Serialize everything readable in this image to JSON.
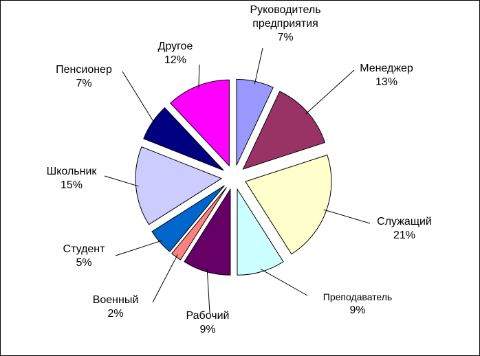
{
  "chart_data": {
    "type": "pie",
    "categories": [
      "Руководитель предприятия",
      "Менеджер",
      "Служащий",
      "Преподаватель",
      "Рабочий",
      "Военный",
      "Студент",
      "Школьник",
      "Пенсионер",
      "Другое"
    ],
    "values": [
      7,
      13,
      21,
      9,
      9,
      2,
      5,
      15,
      7,
      12
    ],
    "value_labels": [
      "7%",
      "13%",
      "21%",
      "9%",
      "9%",
      "2%",
      "5%",
      "15%",
      "7%",
      "12%"
    ],
    "colors": [
      "#9999ff",
      "#993366",
      "#ffffcc",
      "#ccffff",
      "#660066",
      "#ff8080",
      "#0066cc",
      "#ccccff",
      "#000080",
      "#ff00ff"
    ]
  }
}
